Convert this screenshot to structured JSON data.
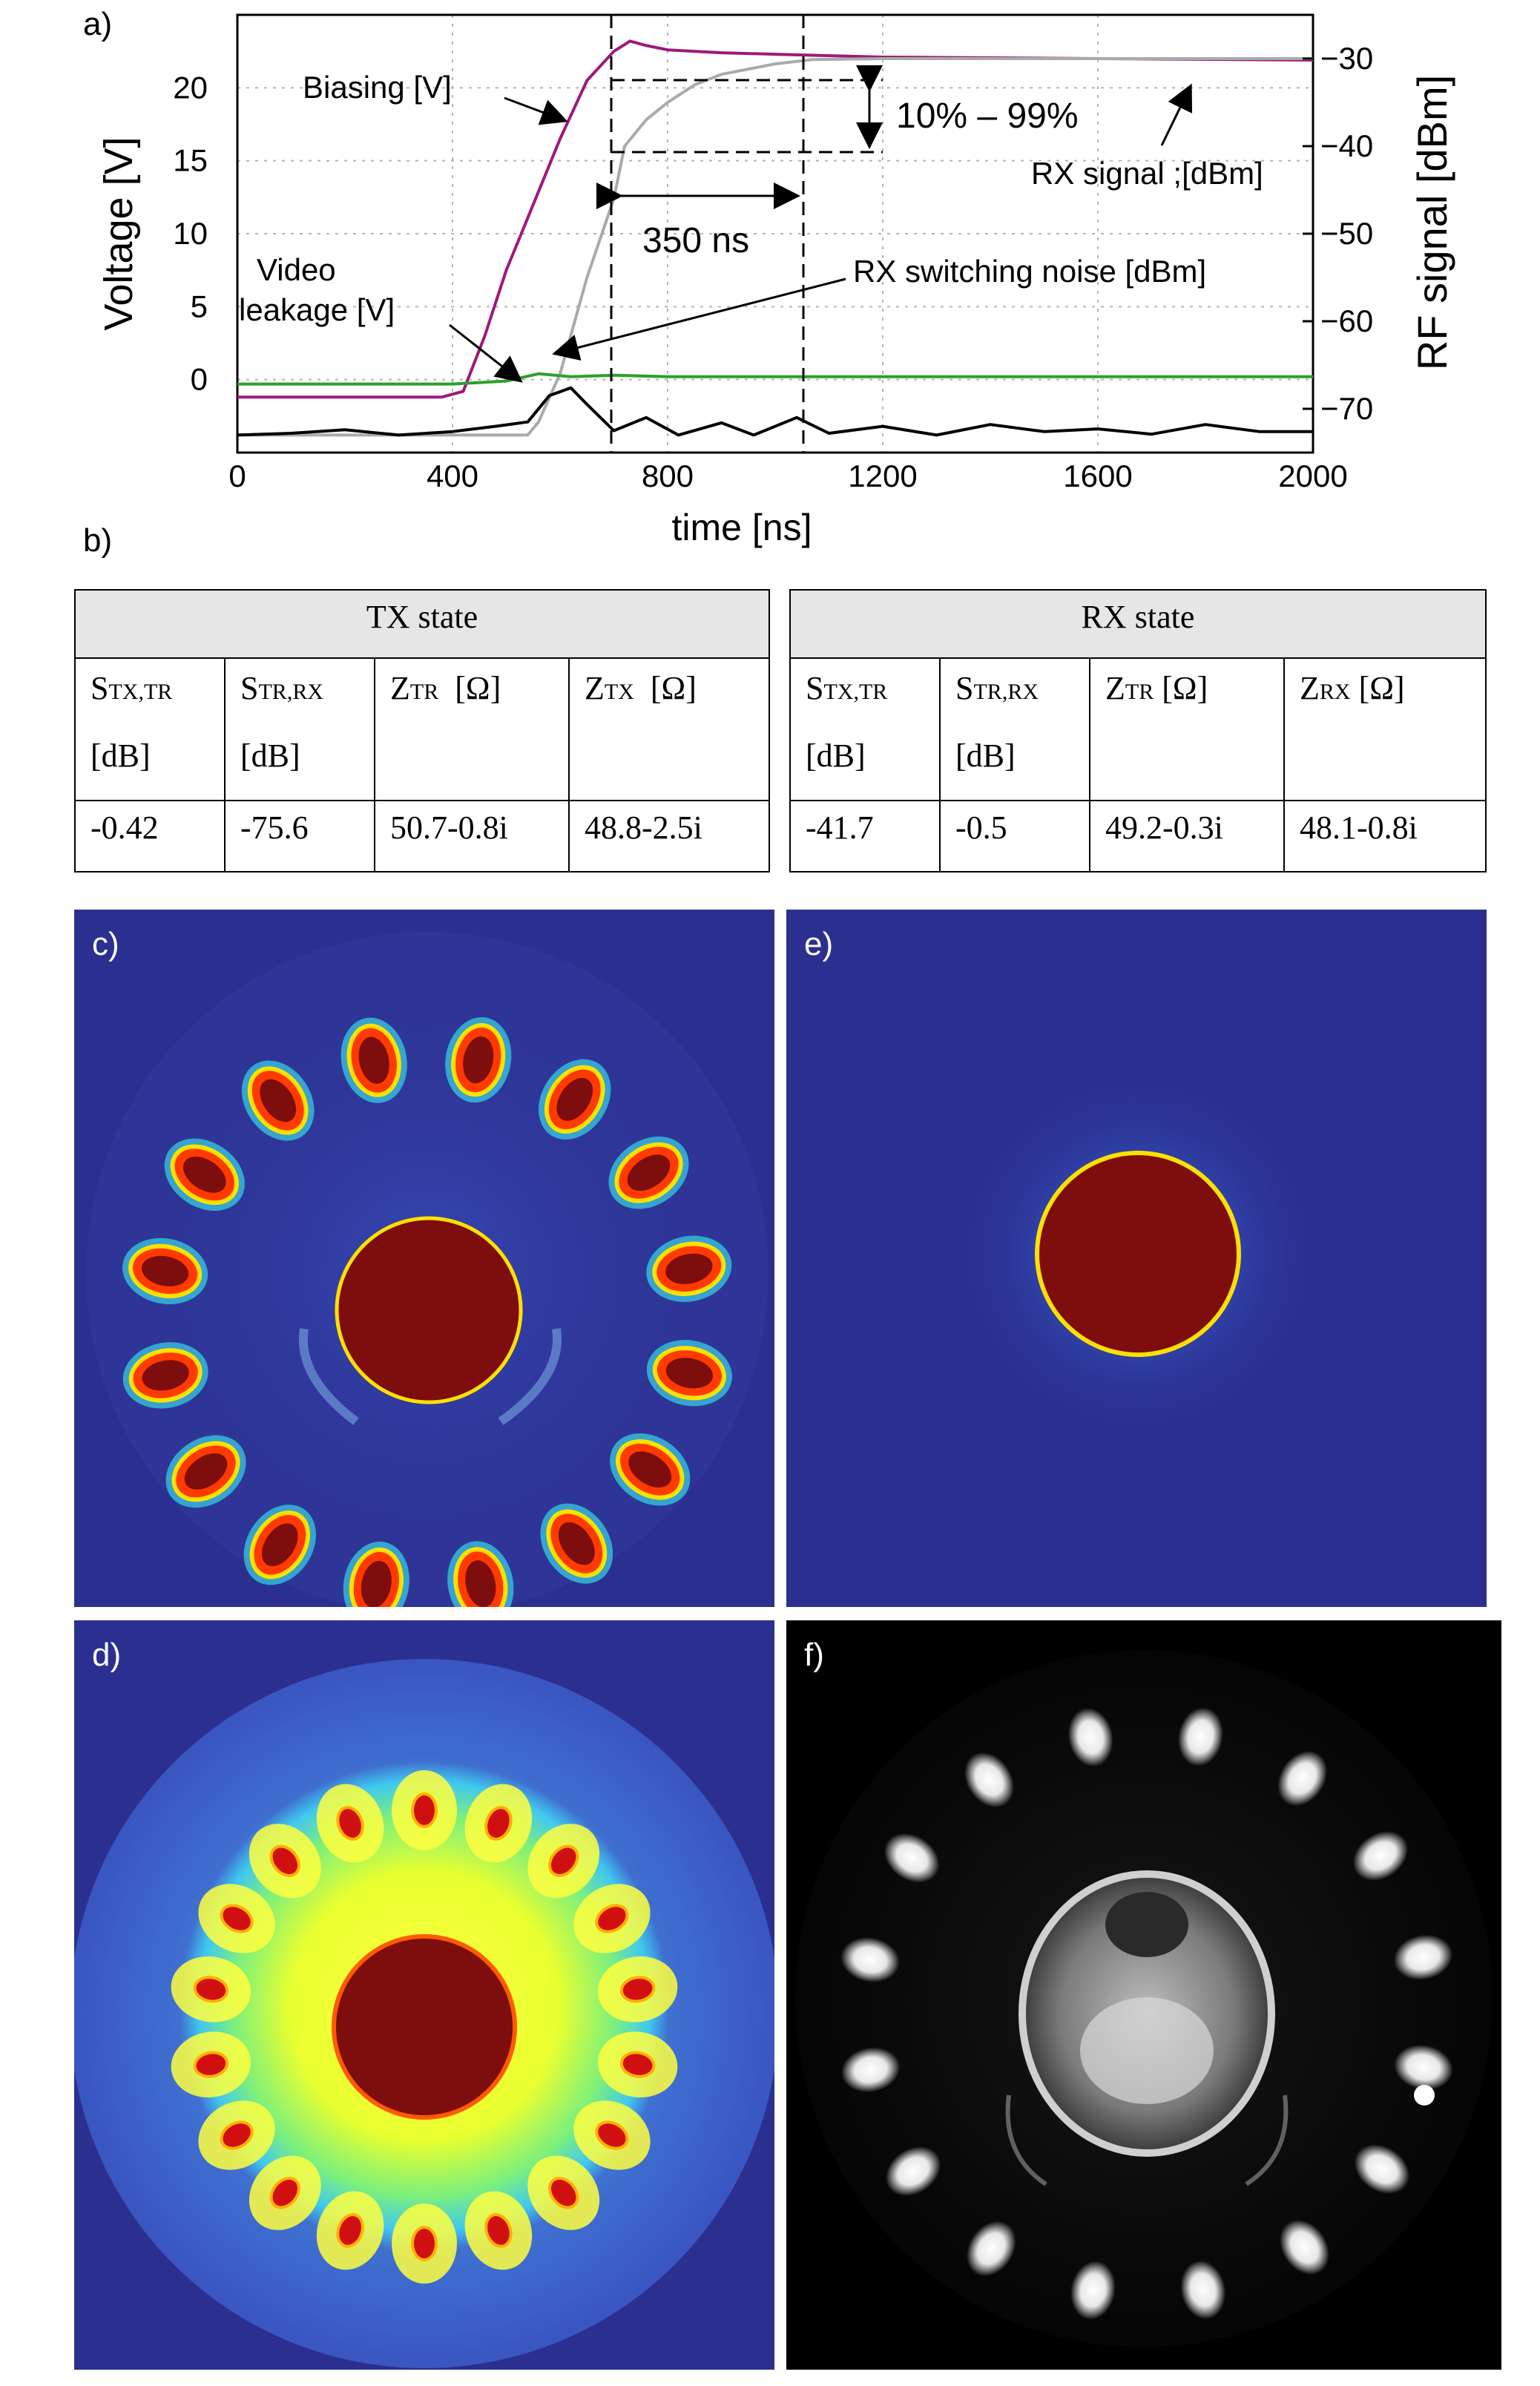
{
  "panels": {
    "a": "a)",
    "b": "b)",
    "c": "c)",
    "d": "d)",
    "e": "e)",
    "f": "f)"
  },
  "chart_data": {
    "type": "line",
    "xlabel": "time [ns]",
    "ylabel": "Voltage [V]",
    "y2label": "RF signal [dBm]",
    "xlim": [
      0,
      2000
    ],
    "ylim": [
      -5,
      25
    ],
    "y2lim": [
      -75,
      -25
    ],
    "xticks": [
      0,
      400,
      800,
      1200,
      1600,
      2000
    ],
    "yticks": [
      0,
      5,
      10,
      15,
      20
    ],
    "y2ticks": [
      -30,
      -40,
      -50,
      -60,
      -70
    ],
    "grid": true,
    "series": [
      {
        "name": "Biasing [V]",
        "axis": "left",
        "color": "#a0187a",
        "x": [
          0,
          380,
          420,
          460,
          500,
          550,
          600,
          650,
          700,
          730,
          760,
          800,
          900,
          1000,
          1200,
          1600,
          2000
        ],
        "y": [
          -1.2,
          -1.2,
          -0.8,
          3,
          7.5,
          12,
          16.5,
          20.5,
          22.5,
          23.2,
          22.9,
          22.6,
          22.4,
          22.3,
          22.1,
          22.0,
          21.9
        ]
      },
      {
        "name": "RX signal ;[dBm]",
        "axis": "right",
        "color": "#aaaaaa",
        "x": [
          0,
          540,
          560,
          600,
          650,
          700,
          720,
          760,
          800,
          850,
          900,
          1000,
          1070,
          1200,
          1600,
          2000
        ],
        "y": [
          -73,
          -73,
          -71.5,
          -66,
          -55,
          -46,
          -40,
          -37,
          -35,
          -33,
          -31.8,
          -30.6,
          -30.1,
          -30,
          -30,
          -30
        ]
      },
      {
        "name": "RX switching noise  [dBm]",
        "axis": "right",
        "color": "#000000",
        "x": [
          0,
          100,
          200,
          300,
          400,
          480,
          540,
          580,
          620,
          650,
          700,
          760,
          820,
          900,
          960,
          1040,
          1100,
          1200,
          1300,
          1400,
          1500,
          1600,
          1700,
          1800,
          1900,
          2000
        ],
        "y": [
          -73,
          -72.8,
          -72.4,
          -73,
          -72.6,
          -72,
          -71.5,
          -68.5,
          -67.6,
          -69.5,
          -72.5,
          -71,
          -73,
          -71.6,
          -73,
          -71,
          -72.8,
          -72,
          -73,
          -71.8,
          -72.6,
          -72.3,
          -72.9,
          -71.8,
          -72.6,
          -72.6
        ]
      },
      {
        "name": "Video leakage [V]",
        "axis": "left",
        "color": "#2ca02c",
        "x": [
          0,
          400,
          500,
          560,
          620,
          700,
          800,
          1000,
          1200,
          1600,
          2000
        ],
        "y": [
          -0.3,
          -0.3,
          -0.1,
          0.4,
          0.2,
          0.3,
          0.2,
          0.2,
          0.2,
          0.2,
          0.2
        ]
      }
    ],
    "annotations": [
      {
        "text": "Biasing [V]"
      },
      {
        "text": "Video leakage [V]"
      },
      {
        "text": "RX switching noise  [dBm]"
      },
      {
        "text": "RX signal ;[dBm]"
      },
      {
        "text": "10% – 99%"
      },
      {
        "text": "350 ns"
      }
    ]
  },
  "table": {
    "tx_state": "TX state",
    "rx_state": "RX state",
    "headers": [
      {
        "main": "S",
        "sub": "TX,TR",
        "unit": "[dB]"
      },
      {
        "main": "S",
        "sub": "TR,RX",
        "unit": "[dB]"
      },
      {
        "main": "Z",
        "sub": "TR",
        "unit": "[Ω]"
      },
      {
        "main": "Z",
        "sub": "TX",
        "unit": "[Ω]"
      },
      {
        "main": "S",
        "sub": "TX,TR",
        "unit": "[dB]"
      },
      {
        "main": "S",
        "sub": "TR,RX",
        "unit": "[dB]"
      },
      {
        "main": "Z",
        "sub": "TR",
        "unit": "[Ω]"
      },
      {
        "main": "Z",
        "sub": "RX",
        "unit": "[Ω]"
      }
    ],
    "values": [
      "-0.42",
      "-75.6",
      "50.7-0.8i",
      "48.8-2.5i",
      "-41.7",
      "-0.5",
      "49.2-0.3i",
      "48.1-0.8i"
    ]
  },
  "colors": {
    "background_blue": "#2b2f8f",
    "dark_red": "#7e0d0d",
    "biasing": "#a0187a",
    "rx_signal": "#aaaaaa",
    "video": "#2ca02c"
  }
}
